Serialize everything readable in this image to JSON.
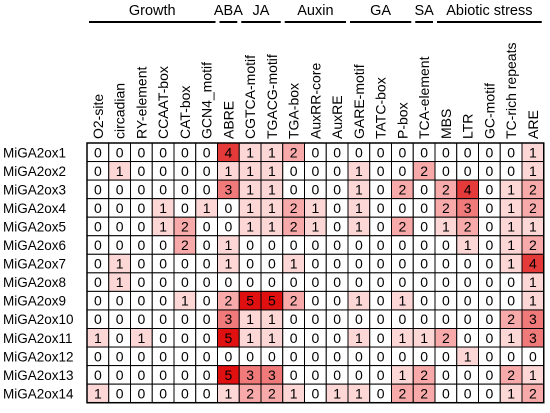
{
  "chart_data": {
    "type": "heatmap",
    "groups": [
      {
        "label": "Growth",
        "from": 0,
        "to": 5
      },
      {
        "label": "ABA",
        "from": 6,
        "to": 6
      },
      {
        "label": "JA",
        "from": 7,
        "to": 8
      },
      {
        "label": "Auxin",
        "from": 9,
        "to": 11
      },
      {
        "label": "GA",
        "from": 12,
        "to": 14
      },
      {
        "label": "SA",
        "from": 15,
        "to": 15
      },
      {
        "label": "Abiotic stress",
        "from": 16,
        "to": 20
      }
    ],
    "columns": [
      "O2-site",
      "circadian",
      "RY-element",
      "CCAAT-box",
      "CAT-box",
      "GCN4_motif",
      "ABRE",
      "CGTCA-motif",
      "TGACG-motif",
      "TGA-box",
      "AuxRR-core",
      "AuxRE",
      "GARE-motif",
      "TATC-box",
      "P-box",
      "TCA-element",
      "MBS",
      "LTR",
      "GC-motif",
      "TC-rich repeats",
      "ARE"
    ],
    "rows": [
      "MiGA2ox1",
      "MiGA2ox2",
      "MiGA2ox3",
      "MiGA2ox4",
      "MiGA2ox5",
      "MiGA2ox6",
      "MiGA2ox7",
      "MiGA2ox8",
      "MiGA2ox9",
      "MiGA2ox10",
      "MiGA2ox11",
      "MiGA2ox12",
      "MiGA2ox13",
      "MiGA2ox14"
    ],
    "values": [
      [
        0,
        0,
        0,
        0,
        0,
        0,
        4,
        1,
        1,
        2,
        0,
        0,
        0,
        0,
        0,
        0,
        0,
        0,
        0,
        0,
        1
      ],
      [
        0,
        1,
        0,
        0,
        0,
        0,
        1,
        1,
        1,
        0,
        0,
        0,
        1,
        0,
        0,
        2,
        0,
        0,
        0,
        0,
        1
      ],
      [
        0,
        0,
        0,
        0,
        0,
        0,
        3,
        1,
        1,
        0,
        0,
        0,
        1,
        0,
        2,
        0,
        2,
        4,
        0,
        1,
        2
      ],
      [
        0,
        0,
        0,
        1,
        0,
        1,
        0,
        1,
        1,
        2,
        1,
        0,
        1,
        0,
        0,
        0,
        2,
        3,
        0,
        1,
        2
      ],
      [
        0,
        0,
        0,
        1,
        2,
        0,
        0,
        1,
        1,
        2,
        1,
        0,
        1,
        0,
        2,
        0,
        1,
        2,
        0,
        1,
        1
      ],
      [
        0,
        0,
        0,
        0,
        2,
        0,
        1,
        0,
        0,
        0,
        0,
        0,
        0,
        0,
        0,
        0,
        0,
        1,
        0,
        1,
        2
      ],
      [
        0,
        1,
        0,
        0,
        0,
        0,
        1,
        0,
        0,
        1,
        0,
        0,
        0,
        0,
        0,
        0,
        0,
        0,
        0,
        1,
        4
      ],
      [
        0,
        1,
        0,
        0,
        0,
        0,
        0,
        0,
        0,
        0,
        0,
        0,
        0,
        0,
        0,
        0,
        0,
        0,
        0,
        0,
        1
      ],
      [
        0,
        0,
        0,
        0,
        1,
        0,
        2,
        5,
        5,
        2,
        0,
        0,
        1,
        0,
        1,
        0,
        0,
        0,
        0,
        0,
        1
      ],
      [
        0,
        0,
        0,
        0,
        0,
        0,
        3,
        1,
        1,
        0,
        0,
        0,
        0,
        0,
        0,
        0,
        0,
        0,
        0,
        2,
        3
      ],
      [
        1,
        0,
        1,
        0,
        0,
        0,
        5,
        1,
        1,
        0,
        0,
        0,
        1,
        0,
        1,
        1,
        2,
        0,
        0,
        1,
        3
      ],
      [
        0,
        0,
        0,
        0,
        0,
        0,
        0,
        0,
        0,
        0,
        0,
        0,
        0,
        0,
        0,
        0,
        0,
        1,
        0,
        0,
        0
      ],
      [
        0,
        0,
        0,
        0,
        0,
        0,
        5,
        3,
        3,
        0,
        0,
        0,
        0,
        0,
        1,
        2,
        0,
        0,
        0,
        2,
        1
      ],
      [
        1,
        0,
        0,
        0,
        0,
        0,
        1,
        2,
        2,
        1,
        0,
        1,
        1,
        0,
        2,
        2,
        0,
        0,
        0,
        1,
        2
      ]
    ],
    "colors": [
      "#ffffff",
      "#fdd6d6",
      "#f8aaaa",
      "#f07a7a",
      "#e53a3a",
      "#e01010"
    ]
  }
}
